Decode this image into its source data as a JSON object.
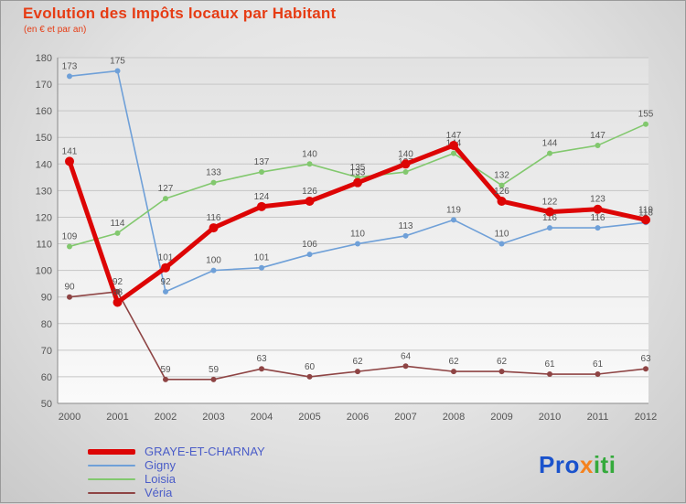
{
  "header": {
    "title": "Evolution des Impôts locaux par Habitant",
    "subtitle": "(en € et par an)"
  },
  "chart_data": {
    "type": "line",
    "x": [
      "2000",
      "2001",
      "2002",
      "2003",
      "2004",
      "2005",
      "2006",
      "2007",
      "2008",
      "2009",
      "2010",
      "2011",
      "2012"
    ],
    "ylim": [
      50,
      180
    ],
    "ytick_step": 10,
    "grid": true,
    "legend_position": "bottom-left",
    "label_color": "#555555",
    "series": [
      {
        "name": "GRAYE-ET-CHARNAY",
        "color": "#dd0505",
        "thick": true,
        "values": [
          141,
          88,
          101,
          116,
          124,
          126,
          133,
          140,
          147,
          126,
          122,
          123,
          119
        ]
      },
      {
        "name": "Gigny",
        "color": "#6fa0d8",
        "thick": false,
        "values": [
          173,
          175,
          92,
          100,
          101,
          106,
          110,
          113,
          119,
          110,
          116,
          116,
          118
        ]
      },
      {
        "name": "Loisia",
        "color": "#82c86e",
        "thick": false,
        "values": [
          109,
          114,
          127,
          133,
          137,
          140,
          135,
          137,
          144,
          132,
          144,
          147,
          155
        ]
      },
      {
        "name": "Véria",
        "color": "#8e4444",
        "thick": false,
        "values": [
          90,
          92,
          59,
          59,
          63,
          60,
          62,
          64,
          62,
          62,
          61,
          61,
          63
        ]
      }
    ]
  },
  "logo": {
    "parts": [
      {
        "text": "Pro",
        "color": "#1a52cc"
      },
      {
        "text": "x",
        "color": "#f5821e"
      },
      {
        "text": "iti",
        "color": "#35aa3c"
      }
    ]
  }
}
